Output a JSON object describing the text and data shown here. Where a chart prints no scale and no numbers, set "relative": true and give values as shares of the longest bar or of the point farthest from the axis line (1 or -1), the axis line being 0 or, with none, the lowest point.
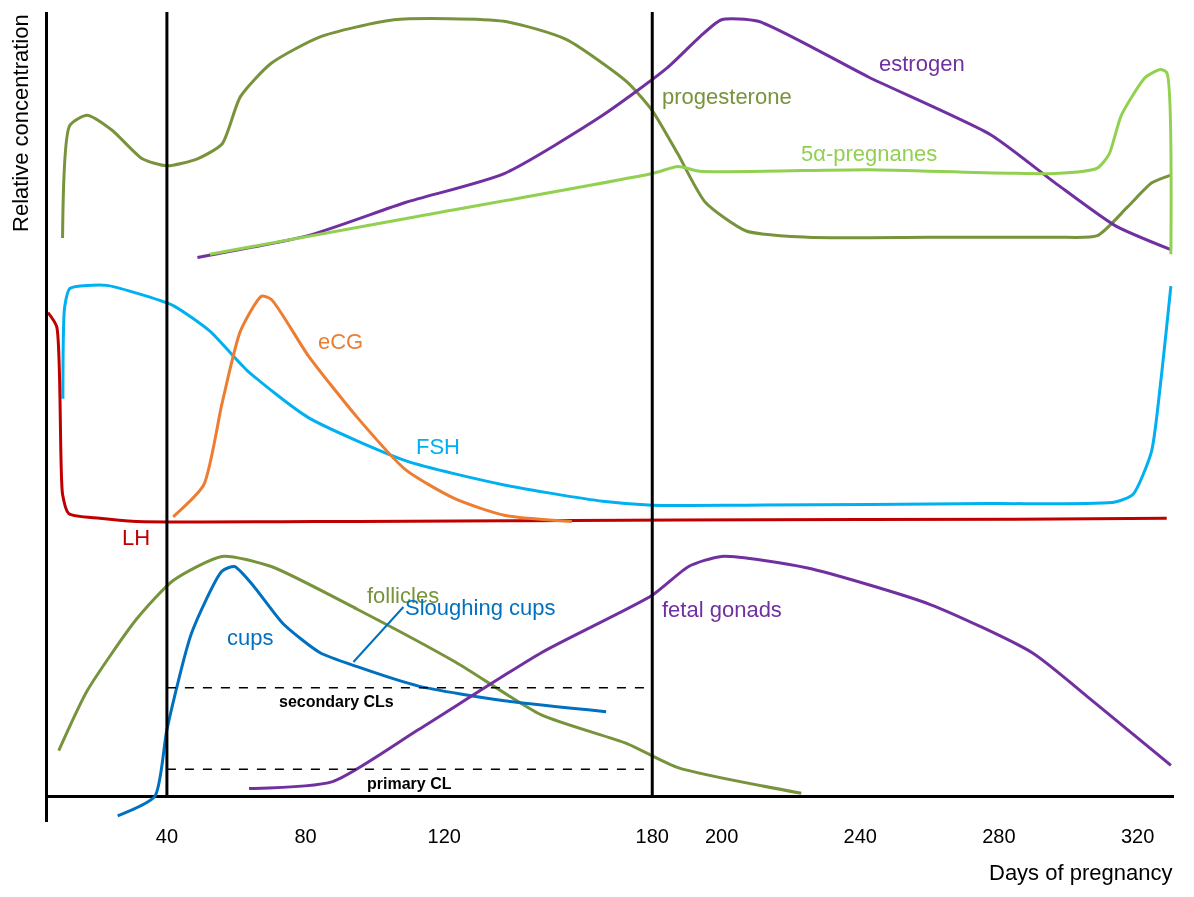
{
  "chart_data": {
    "type": "line",
    "relative": true,
    "xlabel": "Days of pregnancy",
    "ylabel": "Relative concentration",
    "xlim": [
      5.7,
      330.5
    ],
    "xticks": [
      40,
      80,
      120,
      180,
      200,
      240,
      280,
      320
    ],
    "tick_labels": "x",
    "legend": false,
    "marker": "none",
    "line_style": "solid",
    "series": [
      {
        "name": "progesterone",
        "color": "#77933c",
        "x": [
          9.9,
          12,
          17,
          24.1,
          32.9,
          40,
          48.8,
          55.9,
          61.2,
          70.1,
          84.2,
          105.5,
          137.3,
          155,
          172.7,
          180,
          187.4,
          195.3,
          207.1,
          224.8,
          260.2,
          296.2,
          308.4,
          317.1,
          324.1,
          329.6
        ],
        "values": [
          0.719,
          0.864,
          0.877,
          0.858,
          0.821,
          0.812,
          0.821,
          0.84,
          0.901,
          0.944,
          0.978,
          1.0,
          0.998,
          0.975,
          0.92,
          0.883,
          0.827,
          0.765,
          0.728,
          0.72,
          0.72,
          0.72,
          0.722,
          0.759,
          0.79,
          0.8
        ]
      },
      {
        "name": "estrogen",
        "color": "#7030a0",
        "x": [
          48.8,
          80.7,
          109,
          137.3,
          165.7,
          184.3,
          193.7,
          200,
          210.6,
          242.5,
          277.6,
          296.2,
          313.5,
          329.6
        ],
        "values": [
          0.694,
          0.722,
          0.765,
          0.802,
          0.877,
          0.938,
          0.978,
          1.0,
          0.998,
          0.926,
          0.852,
          0.79,
          0.735,
          0.704
        ]
      },
      {
        "name": "5α-pregnanes",
        "color": "#92d050",
        "x": [
          52.4,
          112.6,
          180,
          187.4,
          193.7,
          242.5,
          296.2,
          308.4,
          311.8,
          315.3,
          322.3,
          326.6,
          328.4,
          329.6
        ],
        "values": [
          0.698,
          0.747,
          0.802,
          0.811,
          0.805,
          0.807,
          0.802,
          0.809,
          0.827,
          0.877,
          0.926,
          0.936,
          0.932,
          0.698
        ]
      },
      {
        "name": "FSH",
        "color": "#00b0f0",
        "x": [
          10,
          10.5,
          12,
          22.6,
          31.2,
          41.8,
          52.4,
          63,
          80.7,
          109,
          137.3,
          165.7,
          180,
          207.1,
          277.6,
          313.5,
          318.7,
          324,
          326.6,
          329.6
        ],
        "values": [
          0.512,
          0.63,
          0.654,
          0.658,
          0.648,
          0.632,
          0.599,
          0.549,
          0.488,
          0.432,
          0.401,
          0.38,
          0.375,
          0.375,
          0.377,
          0.379,
          0.389,
          0.444,
          0.531,
          0.657
        ]
      },
      {
        "name": "LH",
        "color": "#c00000",
        "x": [
          5.7,
          8.2,
          9.9,
          11.7,
          20.6,
          31.2,
          94.9,
          187.4,
          296.2,
          328.4
        ],
        "values": [
          0.623,
          0.605,
          0.389,
          0.364,
          0.358,
          0.354,
          0.354,
          0.356,
          0.357,
          0.358
        ]
      },
      {
        "name": "eCG",
        "color": "#ed7d31",
        "x": [
          41.8,
          50.6,
          55.9,
          61.2,
          67.3,
          70.1,
          80.7,
          94.9,
          109,
          123.2,
          137.3,
          156.8
        ],
        "values": [
          0.36,
          0.401,
          0.506,
          0.599,
          0.644,
          0.64,
          0.568,
          0.488,
          0.42,
          0.383,
          0.362,
          0.354
        ]
      },
      {
        "name": "follicles",
        "color": "#77933c",
        "x": [
          8.8,
          17,
          31.2,
          41.8,
          55.9,
          70.1,
          94.9,
          123.2,
          148,
          172.7,
          187.4,
          223
        ],
        "values": [
          0.059,
          0.136,
          0.228,
          0.278,
          0.309,
          0.296,
          0.241,
          0.173,
          0.105,
          0.068,
          0.037,
          0.004
        ]
      },
      {
        "name": "cups",
        "color": "#0070c0",
        "x": [
          25.8,
          36.5,
          40,
          47.1,
          55.9,
          59.5,
          64.8,
          73.6,
          84.2,
          94.9,
          112.6,
          137.3,
          166.7
        ],
        "values": [
          -0.025,
          0.0,
          0.086,
          0.21,
          0.29,
          0.296,
          0.272,
          0.222,
          0.185,
          0.167,
          0.142,
          0.123,
          0.109
        ]
      },
      {
        "name": "fetal gonads",
        "color": "#7030a0",
        "x": [
          63.7,
          87.8,
          112.6,
          148,
          180,
          190.5,
          200,
          224.8,
          260.2,
          289.6,
          307,
          329.6
        ],
        "values": [
          0.01,
          0.019,
          0.086,
          0.185,
          0.259,
          0.296,
          0.309,
          0.294,
          0.247,
          0.185,
          0.123,
          0.04
        ]
      },
      {
        "name": "secondary CLs",
        "color": "#000000",
        "line_style": "dashed",
        "x": [
          40,
          180
        ],
        "values": [
          0.14,
          0.14
        ]
      },
      {
        "name": "primary CL",
        "color": "#000000",
        "line_style": "dashed",
        "x": [
          40,
          180
        ],
        "values": [
          0.035,
          0.035
        ]
      }
    ],
    "ref_lines": [
      {
        "axis": "x",
        "value": 40,
        "color": "#000000"
      },
      {
        "axis": "x",
        "value": 180,
        "color": "#000000"
      }
    ],
    "annotations": [
      {
        "text": "Sloughing cups",
        "x": 93.8,
        "y": 0.173
      }
    ]
  }
}
